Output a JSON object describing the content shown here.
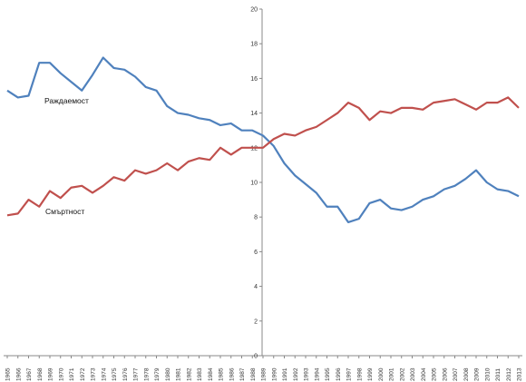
{
  "chart_data": {
    "type": "line",
    "x": [
      "1965",
      "1966",
      "1967",
      "1968",
      "1969",
      "1970",
      "1971",
      "1972",
      "1973",
      "1974",
      "1975",
      "1976",
      "1977",
      "1978",
      "1979",
      "1980",
      "1981",
      "1982",
      "1983",
      "1984",
      "1985",
      "1986",
      "1987",
      "1988",
      "1989",
      "1990",
      "1991",
      "1992",
      "1993",
      "1994",
      "1995",
      "1996",
      "1997",
      "1998",
      "1999",
      "2000",
      "2001",
      "2002",
      "2003",
      "2004",
      "2005",
      "2006",
      "2007",
      "2008",
      "2009",
      "2010",
      "2011",
      "2012",
      "2013"
    ],
    "ylim": [
      0,
      20
    ],
    "yticks": [
      "0",
      "2",
      "4",
      "6",
      "8",
      "10",
      "12",
      "14",
      "16",
      "18",
      "20"
    ],
    "grid": false,
    "series": [
      {
        "name": "Раждаемост",
        "color": "#4F81BD",
        "values": [
          15.3,
          14.9,
          15.0,
          16.9,
          16.9,
          16.3,
          15.8,
          15.3,
          16.2,
          17.2,
          16.6,
          16.5,
          16.1,
          15.5,
          15.3,
          14.4,
          14.0,
          13.9,
          13.7,
          13.6,
          13.3,
          13.4,
          13.0,
          13.0,
          12.7,
          12.1,
          11.1,
          10.4,
          9.9,
          9.4,
          8.6,
          8.6,
          7.7,
          7.9,
          8.8,
          9.0,
          8.5,
          8.4,
          8.6,
          9.0,
          9.2,
          9.6,
          9.8,
          10.2,
          10.7,
          10.0,
          9.6,
          9.5,
          9.2
        ]
      },
      {
        "name": "Смъртност",
        "color": "#C0504D",
        "values": [
          8.1,
          8.2,
          9.0,
          8.6,
          9.5,
          9.1,
          9.7,
          9.8,
          9.4,
          9.8,
          10.3,
          10.1,
          10.7,
          10.5,
          10.7,
          11.1,
          10.7,
          11.2,
          11.4,
          11.3,
          12.0,
          11.6,
          12.0,
          12.0,
          12.0,
          12.5,
          12.8,
          12.7,
          13.0,
          13.2,
          13.6,
          14.0,
          14.6,
          14.3,
          13.6,
          14.1,
          14.0,
          14.3,
          14.3,
          14.2,
          14.6,
          14.7,
          14.8,
          14.5,
          14.2,
          14.6,
          14.6,
          14.9,
          14.3
        ]
      }
    ]
  }
}
